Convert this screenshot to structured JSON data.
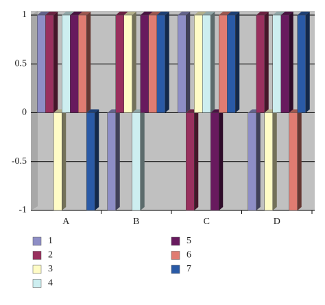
{
  "chart_data": {
    "type": "bar3d",
    "categories": [
      "A",
      "B",
      "C",
      "D"
    ],
    "series": [
      {
        "name": "1",
        "color": "#8e8ec6",
        "values": [
          1,
          -1,
          1,
          -1
        ]
      },
      {
        "name": "2",
        "color": "#99305e",
        "values": [
          1,
          1,
          -1,
          1
        ]
      },
      {
        "name": "3",
        "color": "#fffcc6",
        "values": [
          -1,
          1,
          1,
          -1
        ]
      },
      {
        "name": "4",
        "color": "#cdeef0",
        "values": [
          1,
          -1,
          1,
          1
        ]
      },
      {
        "name": "5",
        "color": "#681a5e",
        "values": [
          1,
          1,
          -1,
          1
        ]
      },
      {
        "name": "6",
        "color": "#e07c72",
        "values": [
          1,
          1,
          1,
          -1
        ]
      },
      {
        "name": "7",
        "color": "#2a5aa6",
        "values": [
          -1,
          1,
          1,
          1
        ]
      }
    ],
    "ylim": [
      -1,
      1
    ],
    "yticks": [
      -1,
      -0.5,
      0,
      0.5,
      1
    ],
    "grid": true
  }
}
